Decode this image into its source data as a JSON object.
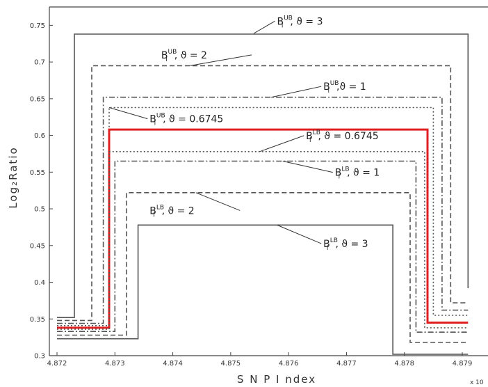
{
  "chart_data": {
    "type": "line",
    "xlabel": "S N P  I ndex",
    "ylabel": "Log₂Ratio",
    "x_multiplier": "x 10",
    "xlim": [
      4.872,
      4.8791
    ],
    "ylim": [
      0.3,
      0.775
    ],
    "x_ticks": [
      4.872,
      4.873,
      4.874,
      4.875,
      4.876,
      4.877,
      4.878,
      4.879
    ],
    "y_ticks": [
      0.3,
      0.35,
      0.4,
      0.45,
      0.5,
      0.55,
      0.6,
      0.65,
      0.7,
      0.75
    ],
    "grid": false,
    "series": [
      {
        "name": "UB3",
        "style": "solid",
        "color": "#555555",
        "x": [
          4.872,
          4.8723,
          4.8723,
          4.8791,
          4.8791
        ],
        "y": [
          0.352,
          0.352,
          0.738,
          0.738,
          0.392
        ]
      },
      {
        "name": "UB2",
        "style": "dashed",
        "color": "#555555",
        "x": [
          4.872,
          4.8726,
          4.8726,
          4.8788,
          4.8788,
          4.8791
        ],
        "y": [
          0.348,
          0.348,
          0.695,
          0.695,
          0.372,
          0.372
        ]
      },
      {
        "name": "UB1",
        "style": "dashdot",
        "color": "#555555",
        "x": [
          4.872,
          4.8728,
          4.8728,
          4.87865,
          4.87865,
          4.8791
        ],
        "y": [
          0.344,
          0.344,
          0.652,
          0.652,
          0.362,
          0.362
        ]
      },
      {
        "name": "UB0.6745",
        "style": "dotted",
        "color": "#555555",
        "x": [
          4.872,
          4.8729,
          4.8729,
          4.8785,
          4.8785,
          4.8791
        ],
        "y": [
          0.341,
          0.341,
          0.638,
          0.638,
          0.355,
          0.355
        ]
      },
      {
        "name": "Estimate",
        "style": "solid",
        "color": "#e02020",
        "x": [
          4.872,
          4.8729,
          4.8729,
          4.8784,
          4.8784,
          4.8791
        ],
        "y": [
          0.338,
          0.338,
          0.608,
          0.608,
          0.345,
          0.345
        ]
      },
      {
        "name": "LB0.6745",
        "style": "dotted",
        "color": "#555555",
        "x": [
          4.872,
          4.8729,
          4.8729,
          4.87835,
          4.87835,
          4.8791
        ],
        "y": [
          0.336,
          0.336,
          0.578,
          0.578,
          0.338,
          0.338
        ]
      },
      {
        "name": "LB1",
        "style": "dashdot",
        "color": "#555555",
        "x": [
          4.872,
          4.873,
          4.873,
          4.8782,
          4.8782,
          4.8791
        ],
        "y": [
          0.333,
          0.333,
          0.565,
          0.565,
          0.332,
          0.332
        ]
      },
      {
        "name": "LB2",
        "style": "dashed",
        "color": "#555555",
        "x": [
          4.872,
          4.8732,
          4.8732,
          4.8781,
          4.8781,
          4.8791
        ],
        "y": [
          0.328,
          0.328,
          0.522,
          0.522,
          0.318,
          0.318
        ]
      },
      {
        "name": "LB3",
        "style": "solid",
        "color": "#555555",
        "x": [
          4.872,
          4.8734,
          4.8734,
          4.8778,
          4.8778,
          4.8791
        ],
        "y": [
          0.323,
          0.323,
          0.478,
          0.478,
          0.302,
          0.302
        ]
      }
    ],
    "annotations": [
      {
        "base": "B",
        "sub": "l",
        "sup": "UB",
        "text": ", ϑ = 3",
        "x": 4.8758,
        "y": 0.751,
        "arrow_to": [
          4.8754,
          0.739
        ]
      },
      {
        "base": "B",
        "sub": "l",
        "sup": "UB",
        "text": ", ϑ = 2",
        "x": 4.8738,
        "y": 0.705,
        "arrow_to": [
          4.8743,
          0.695
        ]
      },
      {
        "base": "B",
        "sub": "l",
        "sup": "UB",
        "text": ",ϑ = 1",
        "x": 4.8766,
        "y": 0.662,
        "arrow_to": [
          4.8757,
          0.652
        ]
      },
      {
        "base": "B",
        "sub": "l",
        "sup": "UB",
        "text": ", ϑ = 0.6745",
        "x": 4.8736,
        "y": 0.618,
        "arrow_to": [
          4.8729,
          0.638
        ]
      },
      {
        "base": "B",
        "sub": "l",
        "sup": "LB",
        "text": ", ϑ = 0.6745",
        "x": 4.8763,
        "y": 0.595,
        "arrow_to": [
          4.8755,
          0.578
        ]
      },
      {
        "base": "B",
        "sub": "l",
        "sup": "LB",
        "text": ", ϑ = 1",
        "x": 4.8768,
        "y": 0.545,
        "arrow_to": [
          4.8759,
          0.565
        ]
      },
      {
        "base": "B",
        "sub": "l",
        "sup": "LB",
        "text": ", ϑ = 2",
        "x": 4.8736,
        "y": 0.493,
        "arrow_to": [
          4.8744,
          0.522
        ]
      },
      {
        "base": "B",
        "sub": "l",
        "sup": "LB",
        "text": ", ϑ = 3",
        "x": 4.8766,
        "y": 0.448,
        "arrow_to": [
          4.8758,
          0.478
        ]
      }
    ]
  }
}
